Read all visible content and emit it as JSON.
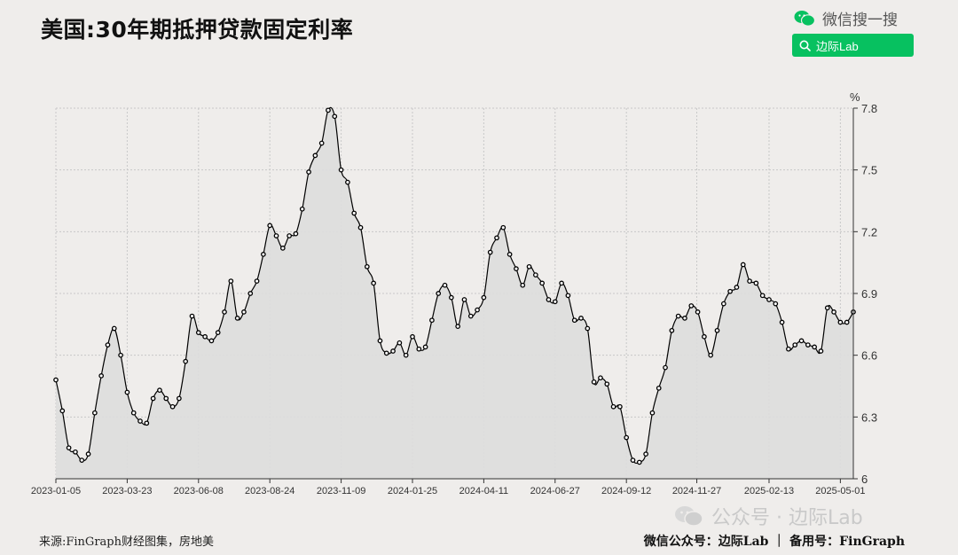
{
  "header": {
    "title": "美国:30年期抵押贷款固定利率",
    "wechat_label": "微信搜一搜",
    "search_text": "边际Lab"
  },
  "watermark": {
    "text": "公众号 · 边际Lab"
  },
  "footer": {
    "source": "来源:FinGraph财经图集，房地美",
    "account": "微信公众号：边际Lab ｜ 备用号：FinGraph"
  },
  "colors": {
    "line": "#000000",
    "area": "#dddddd",
    "accent": "#07c160"
  },
  "chart_data": {
    "type": "area",
    "title": "美国:30年期抵押贷款固定利率",
    "ylabel": "%",
    "ylim": [
      6.0,
      7.8
    ],
    "yticks": [
      6,
      6.3,
      6.6,
      6.9,
      7.2,
      7.5,
      7.8
    ],
    "ytick_labels": [
      "6",
      "6.3",
      "6.6",
      "6.9",
      "7.2",
      "7.5",
      "7.8"
    ],
    "xtick_labels": [
      "2023-01-05",
      "2023-03-23",
      "2023-06-08",
      "2023-08-24",
      "2023-11-09",
      "2024-01-25",
      "2024-04-11",
      "2024-06-27",
      "2024-09-12",
      "2024-11-27",
      "2025-02-13",
      "2025-05-01"
    ],
    "grid": true,
    "x_start": "2023-01-05",
    "x_end": "2025-05-15",
    "x_step": "weekly",
    "values": [
      6.48,
      6.33,
      6.15,
      6.13,
      6.09,
      6.12,
      6.32,
      6.5,
      6.65,
      6.73,
      6.6,
      6.42,
      6.32,
      6.28,
      6.27,
      6.39,
      6.43,
      6.39,
      6.35,
      6.39,
      6.57,
      6.79,
      6.71,
      6.69,
      6.67,
      6.71,
      6.81,
      6.96,
      6.78,
      6.81,
      6.9,
      6.96,
      7.09,
      7.23,
      7.18,
      7.12,
      7.18,
      7.19,
      7.31,
      7.49,
      7.57,
      7.63,
      7.79,
      7.76,
      7.5,
      7.44,
      7.29,
      7.22,
      7.03,
      6.95,
      6.67,
      6.61,
      6.62,
      6.66,
      6.6,
      6.69,
      6.63,
      6.64,
      6.77,
      6.9,
      6.94,
      6.88,
      6.74,
      6.87,
      6.79,
      6.82,
      6.88,
      7.1,
      7.17,
      7.22,
      7.09,
      7.02,
      6.94,
      7.03,
      6.99,
      6.95,
      6.87,
      6.86,
      6.95,
      6.89,
      6.77,
      6.78,
      6.73,
      6.47,
      6.49,
      6.46,
      6.35,
      6.35,
      6.2,
      6.09,
      6.08,
      6.12,
      6.32,
      6.44,
      6.54,
      6.72,
      6.79,
      6.78,
      6.84,
      6.81,
      6.69,
      6.6,
      6.72,
      6.85,
      6.91,
      6.93,
      7.04,
      6.96,
      6.95,
      6.89,
      6.87,
      6.85,
      6.76,
      6.63,
      6.65,
      6.67,
      6.65,
      6.64,
      6.62,
      6.83,
      6.81,
      6.76,
      6.76,
      6.81
    ]
  }
}
